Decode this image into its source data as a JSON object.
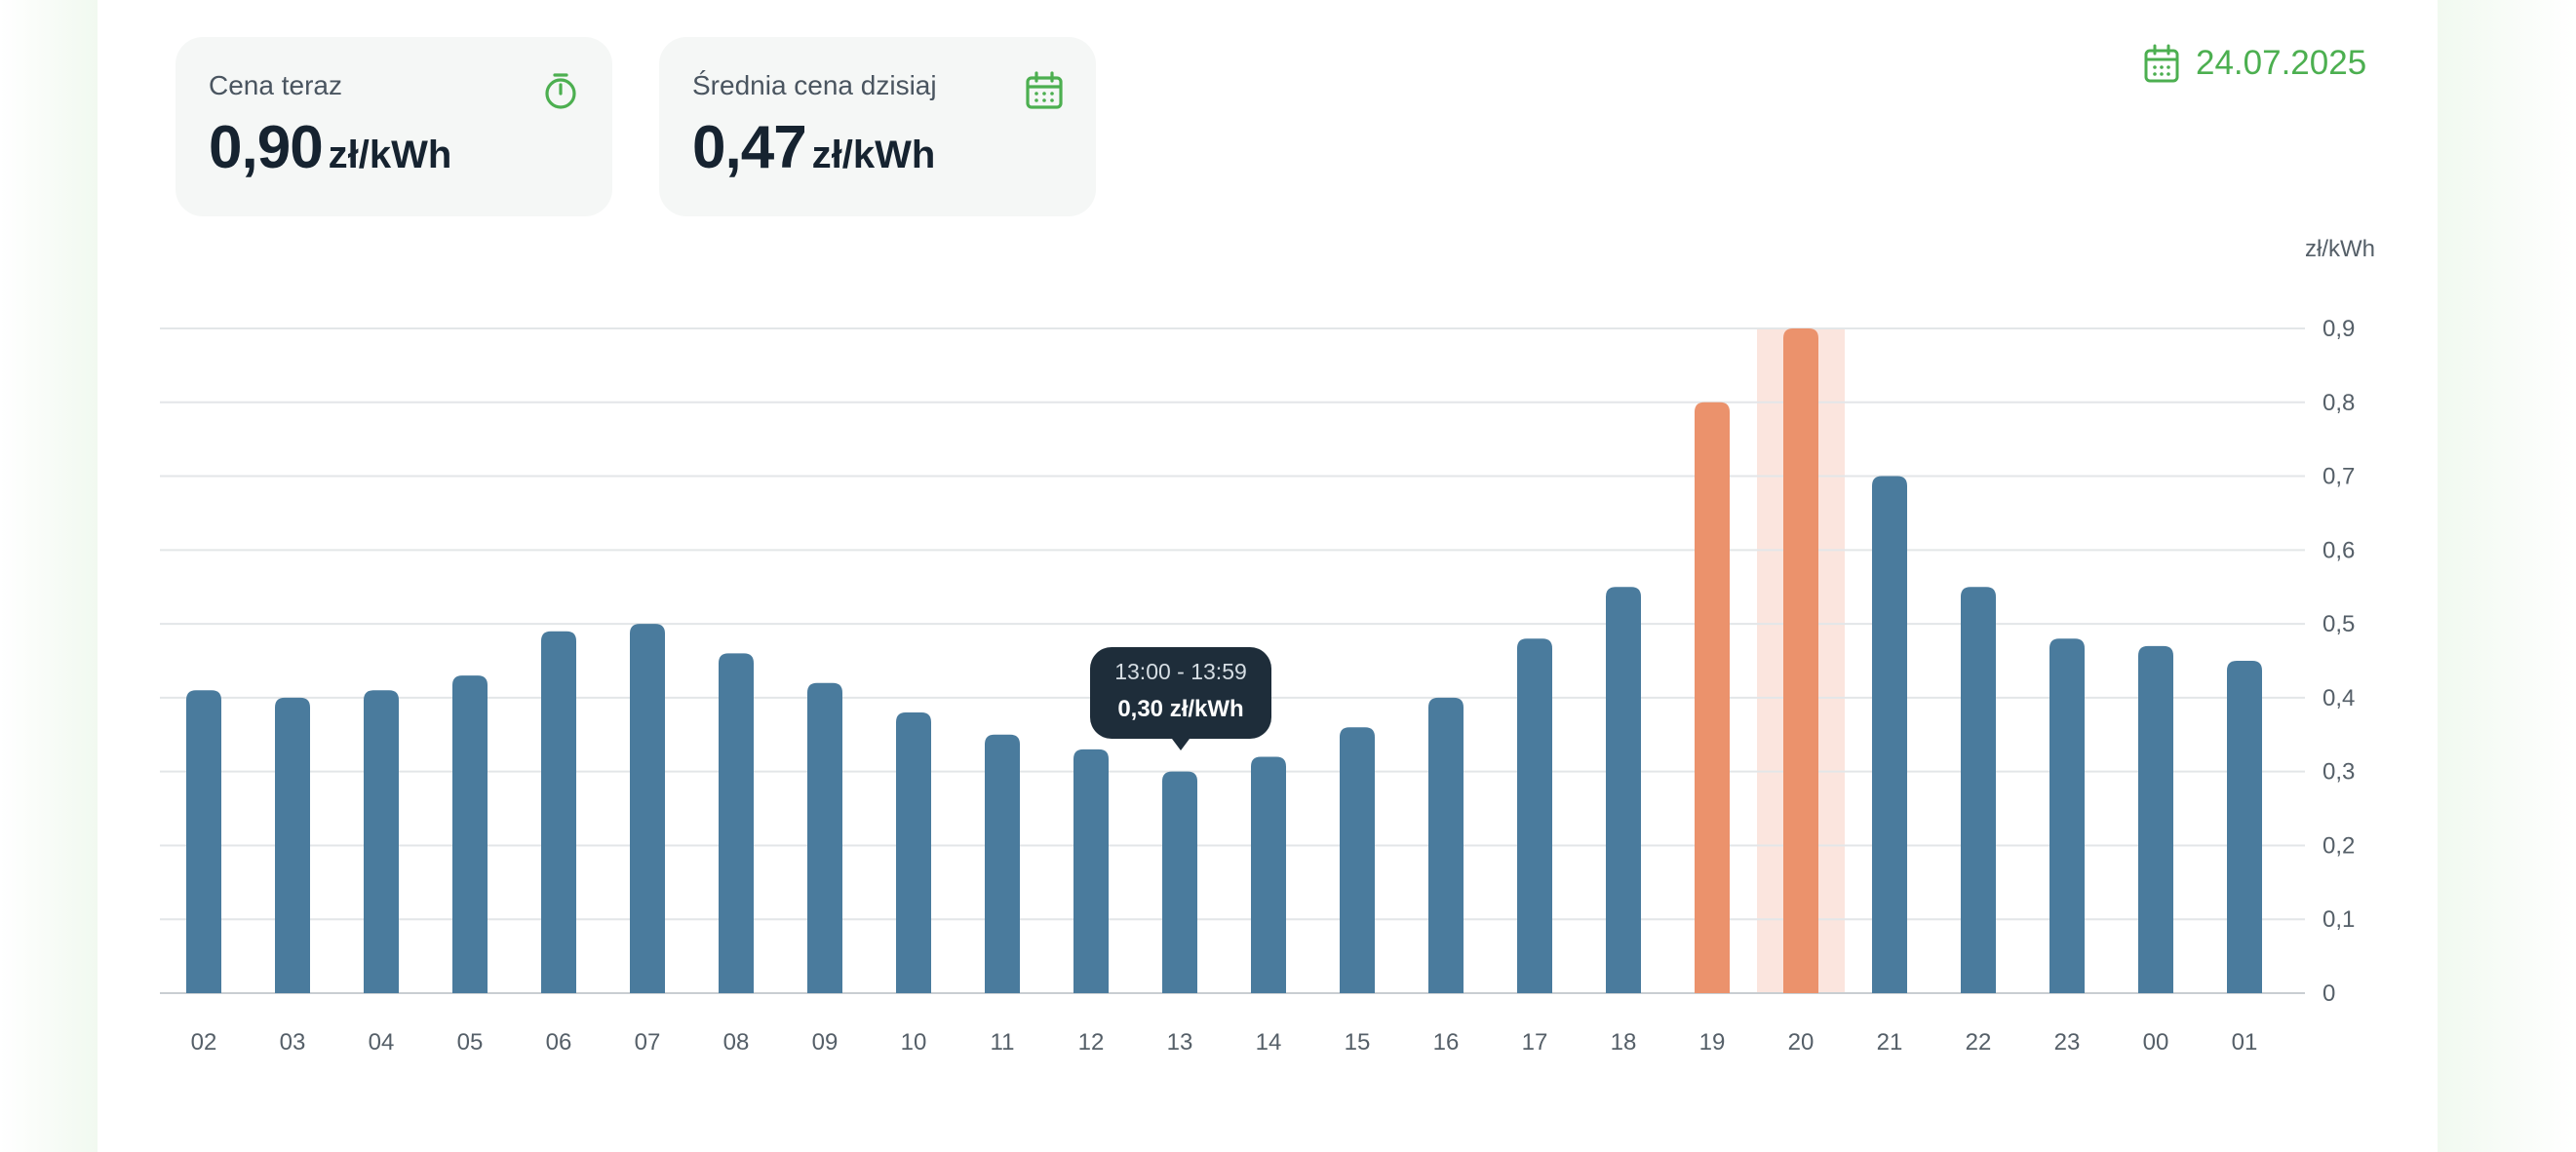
{
  "cards": {
    "now": {
      "label": "Cena teraz",
      "value": "0,90",
      "unit": "zł/kWh",
      "icon": "stopwatch-icon"
    },
    "average": {
      "label": "Średnia cena dzisiaj",
      "value": "0,47",
      "unit": "zł/kWh",
      "icon": "calendar-icon"
    }
  },
  "date": {
    "text": "24.07.2025",
    "icon": "calendar-icon"
  },
  "tooltip": {
    "range": "13:00 - 13:59",
    "value": "0,30 zł/kWh"
  },
  "colors": {
    "accent": "#4caf50",
    "bar_normal": "#4a7b9d",
    "bar_peak": "#eb926c",
    "highlight_band": "#fbe5de",
    "grid": "#e3e6e8",
    "tooltip_bg": "#1e2d3a"
  },
  "chart_data": {
    "type": "bar",
    "unit_label": "zł/kWh",
    "categories": [
      "02",
      "03",
      "04",
      "05",
      "06",
      "07",
      "08",
      "09",
      "10",
      "11",
      "12",
      "13",
      "14",
      "15",
      "16",
      "17",
      "18",
      "19",
      "20",
      "21",
      "22",
      "23",
      "00",
      "01"
    ],
    "values": [
      0.41,
      0.4,
      0.41,
      0.43,
      0.49,
      0.5,
      0.46,
      0.42,
      0.38,
      0.35,
      0.33,
      0.3,
      0.32,
      0.36,
      0.4,
      0.48,
      0.55,
      0.8,
      0.9,
      0.7,
      0.55,
      0.48,
      0.47,
      0.45
    ],
    "peak_categories": [
      "19",
      "20"
    ],
    "highlighted_category": "20",
    "tooltip_category": "13",
    "ylim": [
      0,
      0.9
    ],
    "y_ticks": [
      {
        "value": 0,
        "label": "0"
      },
      {
        "value": 0.1,
        "label": "0,1"
      },
      {
        "value": 0.2,
        "label": "0,2"
      },
      {
        "value": 0.3,
        "label": "0,3"
      },
      {
        "value": 0.4,
        "label": "0,4"
      },
      {
        "value": 0.5,
        "label": "0,5"
      },
      {
        "value": 0.6,
        "label": "0,6"
      },
      {
        "value": 0.7,
        "label": "0,7"
      },
      {
        "value": 0.8,
        "label": "0,8"
      },
      {
        "value": 0.9,
        "label": "0,9"
      }
    ],
    "grid": true,
    "y_axis_position": "right",
    "legend": "none"
  }
}
